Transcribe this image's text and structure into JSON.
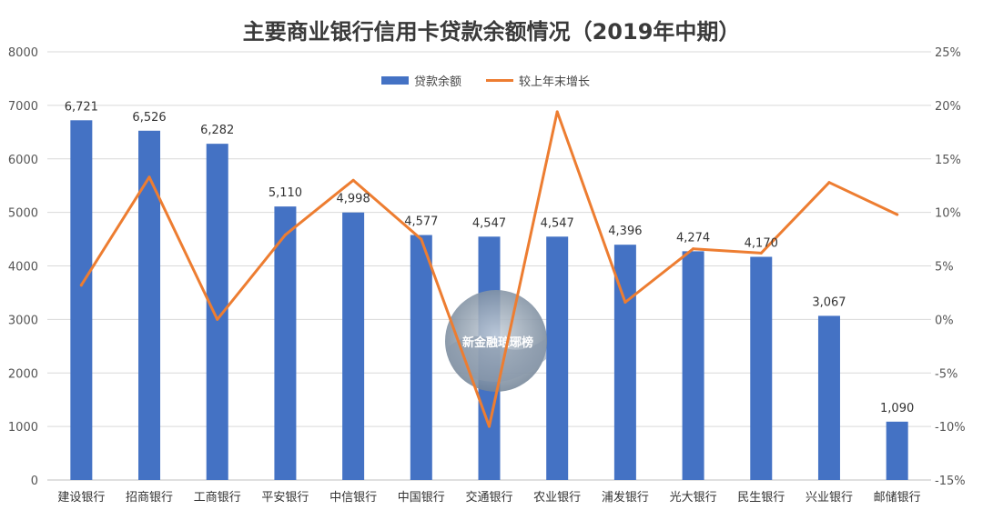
{
  "chart_data": {
    "type": "bar",
    "title": "主要商业银行信用卡贷款余额情况（2019年中期）",
    "categories": [
      "建设银行",
      "招商银行",
      "工商银行",
      "平安银行",
      "中信银行",
      "中国银行",
      "交通银行",
      "农业银行",
      "浦发银行",
      "光大银行",
      "民生银行",
      "兴业银行",
      "邮储银行"
    ],
    "series": [
      {
        "name": "贷款余额",
        "type": "bar",
        "axis": "left",
        "color": "#4472c4",
        "values": [
          6721,
          6526,
          6282,
          5110,
          4998,
          4577,
          4547,
          4547,
          4396,
          4274,
          4170,
          3067,
          1090
        ],
        "labels": [
          "6,721",
          "6,526",
          "6,282",
          "5,110",
          "4,998",
          "4,577",
          "4,547",
          "4,547",
          "4,396",
          "4,274",
          "4,170",
          "3,067",
          "1,090"
        ]
      },
      {
        "name": "较上年末增长",
        "type": "line",
        "axis": "right",
        "color": "#ed7d31",
        "values": [
          3.2,
          13.3,
          0.0,
          7.9,
          13.0,
          7.5,
          -10.0,
          19.4,
          1.6,
          6.6,
          6.2,
          12.8,
          9.8
        ]
      }
    ],
    "left_axis": {
      "min": 0,
      "max": 8000,
      "step": 1000,
      "ticks": [
        "0",
        "1000",
        "2000",
        "3000",
        "4000",
        "5000",
        "6000",
        "7000",
        "8000"
      ]
    },
    "right_axis": {
      "min": -15,
      "max": 25,
      "step": 5,
      "ticks": [
        "-15%",
        "-10%",
        "-5%",
        "0%",
        "5%",
        "10%",
        "15%",
        "20%",
        "25%"
      ]
    },
    "grid": true,
    "legend_position": "top-center",
    "watermark": "新金融琅琊榜"
  }
}
